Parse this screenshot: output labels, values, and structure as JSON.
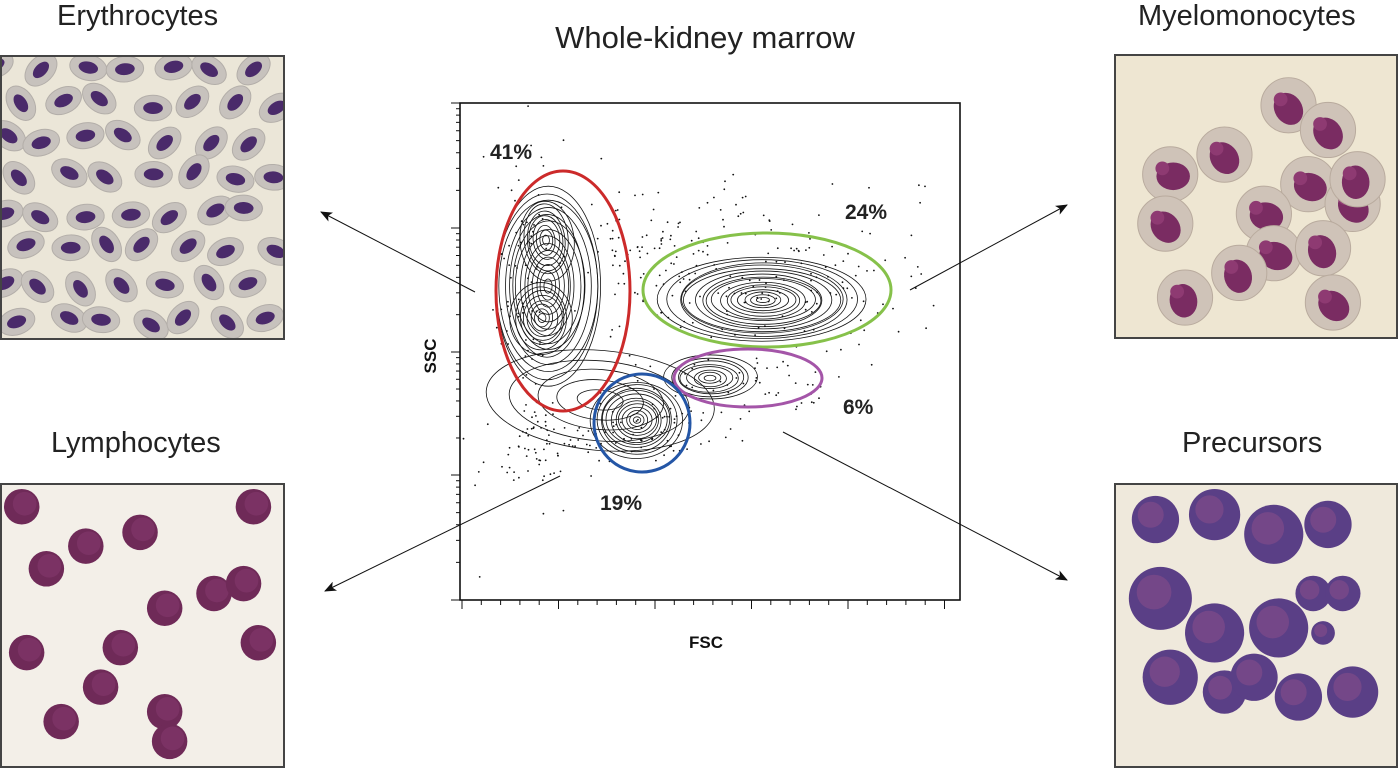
{
  "figure": {
    "plot_title": "Whole-kidney marrow",
    "x_axis_label": "FSC",
    "y_axis_label": "SSC"
  },
  "gates": [
    {
      "name": "erythrocytes-gate",
      "percent_label": "41%",
      "color": "#cc2a2a"
    },
    {
      "name": "myelomonocytes-gate",
      "percent_label": "24%",
      "color": "#86c14a"
    },
    {
      "name": "precursors-gate",
      "percent_label": "6%",
      "color": "#a455a8"
    },
    {
      "name": "lymphocytes-gate",
      "percent_label": "19%",
      "color": "#2456a6"
    }
  ],
  "panels": {
    "erythrocytes": {
      "title": "Erythrocytes"
    },
    "myelomonocytes": {
      "title": "Myelomonocytes"
    },
    "lymphocytes": {
      "title": "Lymphocytes"
    },
    "precursors": {
      "title": "Precursors"
    }
  },
  "colors": {
    "nucleus": "#4a2a6a",
    "cell_purple": "#7a2a5a",
    "background_cream": "#efe9d9"
  }
}
